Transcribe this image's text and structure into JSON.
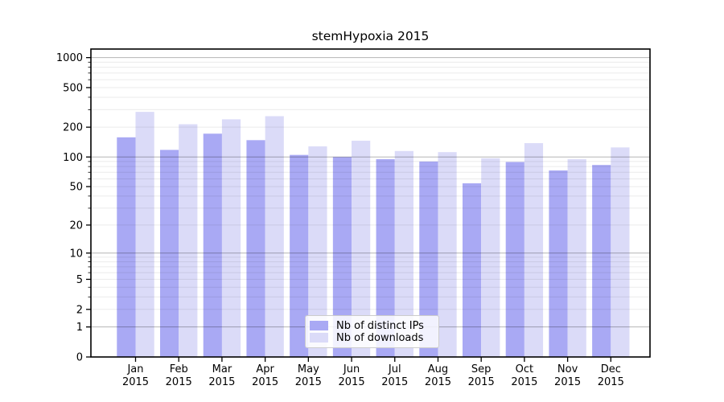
{
  "chart_data": {
    "type": "bar",
    "title": "stemHypoxia 2015",
    "x_axis": {
      "months": [
        "Jan",
        "Feb",
        "Mar",
        "Apr",
        "May",
        "Jun",
        "Jul",
        "Aug",
        "Sep",
        "Oct",
        "Nov",
        "Dec"
      ],
      "year": "2015"
    },
    "y_axis": {
      "scale": "log10(1+x)",
      "tick_values": [
        1000,
        500,
        200,
        100,
        50,
        20,
        10,
        5,
        2,
        1,
        0
      ],
      "major_grid_values": [
        1,
        10,
        100,
        1000
      ],
      "minor_grid_decades": [
        1,
        10,
        100
      ],
      "minor_grid_multiples": [
        2,
        3,
        4,
        5,
        6,
        7,
        8,
        9
      ],
      "range_max": 1220
    },
    "series": [
      {
        "name": "Nb of distinct IPs",
        "color": "#a9a9f4",
        "values": [
          158,
          118,
          172,
          148,
          105,
          100,
          95,
          90,
          54,
          89,
          73,
          83
        ]
      },
      {
        "name": "Nb of downloads",
        "color": "#dbdbf8",
        "values": [
          285,
          214,
          240,
          258,
          128,
          146,
          115,
          112,
          97,
          138,
          95,
          125
        ]
      }
    ],
    "legend": {
      "entries": [
        "Nb of distinct IPs",
        "Nb of downloads"
      ],
      "location": "lower center"
    },
    "grid": true
  },
  "colors": {
    "bar_distinct_ips": "#a9a9f4",
    "bar_downloads": "#dbdbf8",
    "grid_major": "rgba(0,0,0,0.29)",
    "grid_minor": "rgba(0,0,0,0.08)",
    "axis": "#000000",
    "text": "#000000",
    "legend_border": "#cccccc",
    "legend_background": "rgba(255,255,255,0.85)",
    "background": "#ffffff"
  }
}
